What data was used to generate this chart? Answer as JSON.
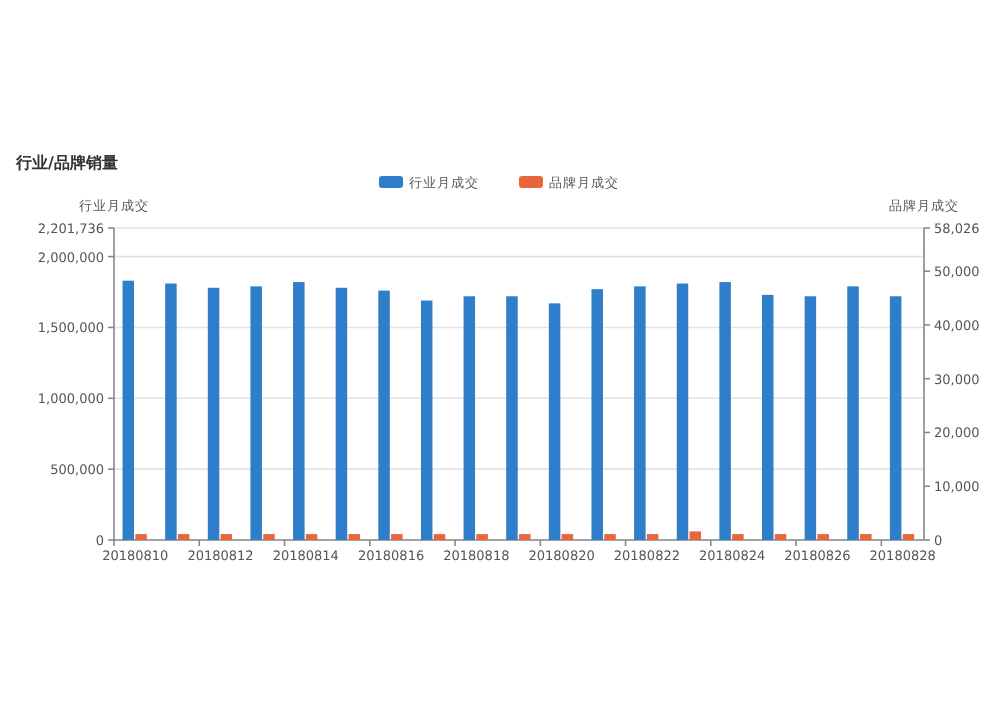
{
  "chart_data": {
    "type": "bar",
    "title": "行业/品牌销量",
    "ylabel": "行业月成交",
    "y2label": "品牌月成交",
    "categories": [
      "20180810",
      null,
      "20180812",
      null,
      "20180814",
      null,
      "20180816",
      null,
      "20180818",
      null,
      "20180820",
      null,
      "20180822",
      null,
      "20180824",
      null,
      "20180826",
      null,
      "20180828"
    ],
    "series": [
      {
        "name": "行业月成交",
        "color": "#2f7ec9",
        "values": [
          1830000,
          1810000,
          1780000,
          1790000,
          1820000,
          1780000,
          1760000,
          1690000,
          1720000,
          1720000,
          1670000,
          1770000,
          1790000,
          1810000,
          1820000,
          1730000,
          1720000,
          1790000,
          1720000
        ]
      },
      {
        "name": "品牌月成交",
        "color": "#e8663c",
        "axis": "y2",
        "values": [
          1100,
          1100,
          1100,
          1100,
          1100,
          1100,
          1100,
          1100,
          1100,
          1100,
          1100,
          1100,
          1100,
          1600,
          1100,
          1100,
          1100,
          1100,
          1100
        ]
      }
    ],
    "ylim": [
      0,
      2201736
    ],
    "yticks": [
      0,
      {
        "value": 500000,
        "label": "500,000"
      },
      {
        "value": 1000000,
        "label": "1,000,000"
      },
      {
        "value": 1500000,
        "label": "1,500,000"
      },
      {
        "value": 2000000,
        "label": "2,000,000"
      },
      {
        "value": 2201736,
        "label": "2,201,736"
      }
    ],
    "y2lim": [
      0,
      58026
    ],
    "y2ticks": [
      0,
      {
        "value": 10000,
        "label": "10,000"
      },
      {
        "value": 20000,
        "label": "20,000"
      },
      {
        "value": 30000,
        "label": "30,000"
      },
      {
        "value": 40000,
        "label": "40,000"
      },
      {
        "value": 50000,
        "label": "50,000"
      },
      {
        "value": 58026,
        "label": "58,026"
      }
    ],
    "grid": "y",
    "legend": "top"
  }
}
